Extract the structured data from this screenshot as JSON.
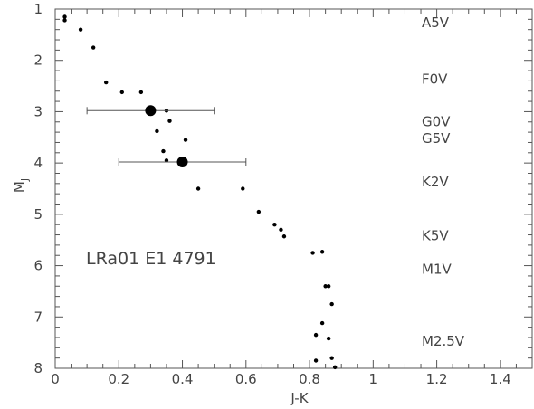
{
  "chart_data": {
    "type": "scatter",
    "title": "",
    "xlabel": "J-K",
    "ylabel": {
      "main": "M",
      "sub": "J"
    },
    "xlim": [
      0,
      1.5
    ],
    "ylim": [
      8,
      1
    ],
    "y_inverted": true,
    "grid": false,
    "xticks": [
      {
        "value": 0,
        "label": "0"
      },
      {
        "value": 0.2,
        "label": "0.2"
      },
      {
        "value": 0.4,
        "label": "0.4"
      },
      {
        "value": 0.6,
        "label": "0.6"
      },
      {
        "value": 0.8,
        "label": "0.8"
      },
      {
        "value": 1.0,
        "label": "1"
      },
      {
        "value": 1.2,
        "label": "1.2"
      },
      {
        "value": 1.4,
        "label": "1.4"
      }
    ],
    "yticks": [
      {
        "value": 1,
        "label": "1"
      },
      {
        "value": 2,
        "label": "2"
      },
      {
        "value": 3,
        "label": "3"
      },
      {
        "value": 4,
        "label": "4"
      },
      {
        "value": 5,
        "label": "5"
      },
      {
        "value": 6,
        "label": "6"
      },
      {
        "value": 7,
        "label": "7"
      },
      {
        "value": 8,
        "label": "8"
      }
    ],
    "annotation": "LRa01  E1  4791",
    "spectral_types": [
      {
        "label": "A5V",
        "y": 1.25
      },
      {
        "label": "F0V",
        "y": 2.35
      },
      {
        "label": "G0V",
        "y": 3.18
      },
      {
        "label": "G5V",
        "y": 3.5
      },
      {
        "label": "K2V",
        "y": 4.35
      },
      {
        "label": "K5V",
        "y": 5.4
      },
      {
        "label": "M1V",
        "y": 6.05
      },
      {
        "label": "M2.5V",
        "y": 7.45
      }
    ],
    "series": [
      {
        "values": [
          [
            0.03,
            1.15
          ],
          [
            0.03,
            1.22
          ],
          [
            0.08,
            1.4
          ],
          [
            0.12,
            1.75
          ],
          [
            0.16,
            2.43
          ],
          [
            0.21,
            2.62
          ],
          [
            0.27,
            2.62
          ],
          [
            0.31,
            2.97
          ],
          [
            0.35,
            2.98
          ],
          [
            0.36,
            3.18
          ],
          [
            0.32,
            3.38
          ],
          [
            0.41,
            3.55
          ],
          [
            0.34,
            3.77
          ],
          [
            0.35,
            3.95
          ],
          [
            0.45,
            4.5
          ],
          [
            0.59,
            4.5
          ],
          [
            0.64,
            4.95
          ],
          [
            0.69,
            5.2
          ],
          [
            0.71,
            5.3
          ],
          [
            0.72,
            5.43
          ],
          [
            0.81,
            5.75
          ],
          [
            0.84,
            5.73
          ],
          [
            0.85,
            6.4
          ],
          [
            0.86,
            6.4
          ],
          [
            0.87,
            6.75
          ],
          [
            0.84,
            7.12
          ],
          [
            0.82,
            7.35
          ],
          [
            0.86,
            7.42
          ],
          [
            0.87,
            7.8
          ],
          [
            0.82,
            7.85
          ],
          [
            0.88,
            7.98
          ]
        ]
      },
      {
        "with_error_bars": true,
        "values": [
          {
            "x": 0.3,
            "y": 2.98,
            "xerr": 0.2
          },
          {
            "x": 0.4,
            "y": 3.98,
            "xerr": 0.2
          }
        ]
      }
    ],
    "color": "#000000",
    "axis_color": "#555555"
  }
}
